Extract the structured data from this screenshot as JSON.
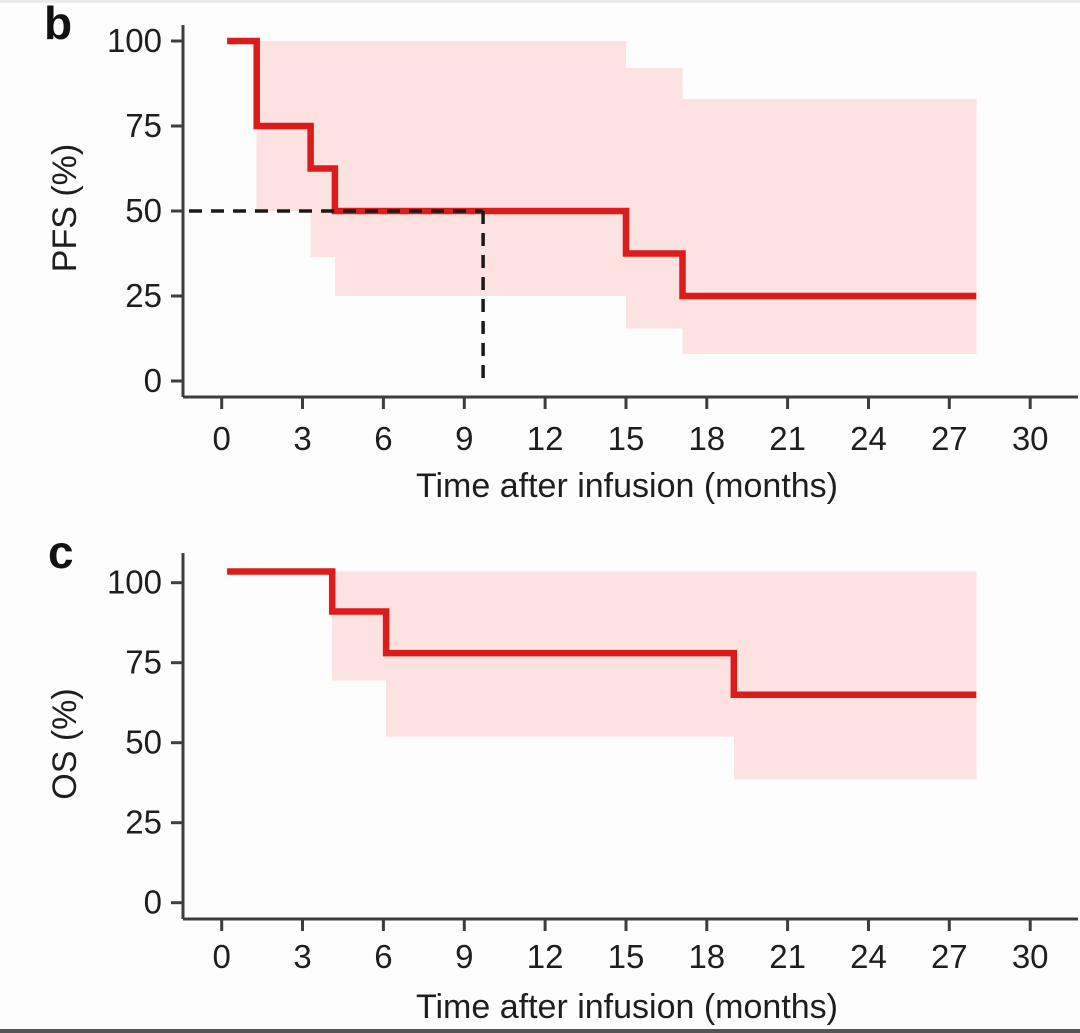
{
  "figure": {
    "background": "#fdfdfd",
    "top_strip_color": "#eaeaea",
    "bottom_strip_color": "#565656"
  },
  "colors": {
    "curve": "#dc1b1b",
    "ci_fill": "#fce3e1",
    "axis": "#3d3d3d",
    "label": "#1e1e1e",
    "median_dash": "#1a1a1a"
  },
  "chart_data": [
    {
      "panel_label": "b",
      "type": "line",
      "subtype": "kaplan-meier-step",
      "series_name": "PFS",
      "xlabel": "Time after infusion (months)",
      "ylabel": "PFS (%)",
      "xlim": [
        0,
        30
      ],
      "ylim": [
        0,
        100
      ],
      "x_ticks": [
        0,
        3,
        6,
        9,
        12,
        15,
        18,
        21,
        24,
        27,
        30
      ],
      "y_ticks": [
        100,
        75,
        50,
        25,
        0
      ],
      "grid": false,
      "legend": false,
      "curve_end_x": 28,
      "steps": [
        [
          0.2,
          100
        ],
        [
          1.3,
          75
        ],
        [
          3.3,
          62.5
        ],
        [
          4.2,
          50
        ],
        [
          15,
          37.5
        ],
        [
          17.1,
          25
        ]
      ],
      "ci_segments": [
        [
          1.3,
          3.3,
          100,
          50
        ],
        [
          3.3,
          4.2,
          100,
          36.5
        ],
        [
          4.2,
          15,
          100,
          25
        ],
        [
          15,
          17.1,
          92,
          15.5
        ],
        [
          17.1,
          28,
          83,
          8
        ]
      ],
      "median_marker": {
        "x": 9.7,
        "y": 50
      }
    },
    {
      "panel_label": "c",
      "type": "line",
      "subtype": "kaplan-meier-step",
      "series_name": "OS",
      "xlabel": "Time after infusion (months)",
      "ylabel": "OS (%)",
      "xlim": [
        0,
        30
      ],
      "ylim": [
        0,
        100
      ],
      "x_ticks": [
        0,
        3,
        6,
        9,
        12,
        15,
        18,
        21,
        24,
        27,
        30
      ],
      "y_ticks": [
        100,
        75,
        50,
        25,
        0
      ],
      "grid": false,
      "legend": false,
      "curve_end_x": 28,
      "steps": [
        [
          0.2,
          103.5
        ],
        [
          4.1,
          91
        ],
        [
          6.1,
          78
        ],
        [
          19,
          65
        ]
      ],
      "ci_segments": [
        [
          4.1,
          6.1,
          103.5,
          69.5
        ],
        [
          6.1,
          19,
          103.5,
          52
        ],
        [
          19,
          28,
          103.5,
          38.5
        ]
      ],
      "median_marker": null
    }
  ]
}
